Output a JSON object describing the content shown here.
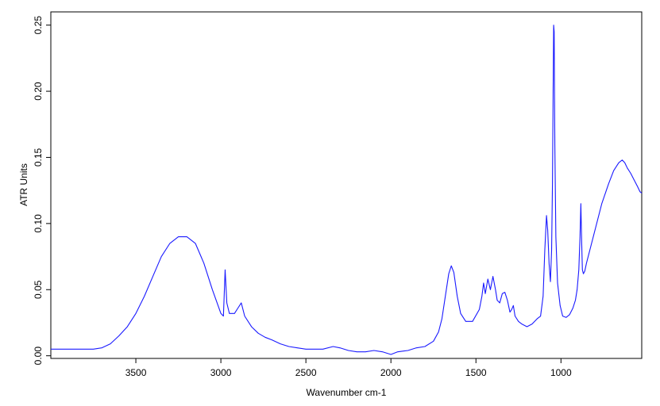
{
  "chart_data": {
    "type": "line",
    "title": "",
    "xlabel": "Wavenumber cm-1",
    "ylabel": "ATR Units",
    "xlim": [
      4000,
      525
    ],
    "x_reversed": true,
    "ylim": [
      -0.002,
      0.26
    ],
    "x_ticks": [
      3500,
      3000,
      2500,
      2000,
      1500,
      1000
    ],
    "x_tick_labels": [
      "3500",
      "3000",
      "2500",
      "2000",
      "1500",
      "1000"
    ],
    "y_ticks": [
      0.0,
      0.05,
      0.1,
      0.15,
      0.2,
      0.25
    ],
    "y_tick_labels": [
      "0.00",
      "0.05",
      "0.10",
      "0.15",
      "0.20",
      "0.25"
    ],
    "grid": false,
    "legend": "none",
    "line_color": "#1a1aff",
    "series": [
      {
        "x": [
          4000,
          3950,
          3900,
          3850,
          3800,
          3750,
          3700,
          3650,
          3600,
          3550,
          3500,
          3450,
          3400,
          3350,
          3300,
          3250,
          3200,
          3150,
          3100,
          3050,
          3000,
          2985,
          2975,
          2965,
          2950,
          2920,
          2900,
          2880,
          2860,
          2820,
          2780,
          2740,
          2700,
          2650,
          2600,
          2550,
          2500,
          2450,
          2400,
          2340,
          2300,
          2250,
          2200,
          2150,
          2100,
          2050,
          2000,
          1960,
          1900,
          1850,
          1800,
          1750,
          1720,
          1700,
          1680,
          1660,
          1645,
          1630,
          1610,
          1590,
          1560,
          1520,
          1480,
          1465,
          1455,
          1445,
          1430,
          1415,
          1400,
          1385,
          1375,
          1360,
          1345,
          1330,
          1315,
          1300,
          1290,
          1280,
          1270,
          1250,
          1230,
          1200,
          1170,
          1140,
          1120,
          1105,
          1095,
          1085,
          1078,
          1070,
          1062,
          1055,
          1050,
          1046,
          1043,
          1040,
          1036,
          1030,
          1020,
          1005,
          990,
          970,
          950,
          930,
          915,
          905,
          895,
          888,
          883,
          878,
          874,
          868,
          860,
          850,
          830,
          800,
          760,
          720,
          690,
          660,
          640,
          625,
          610,
          590,
          570,
          550,
          535,
          525
        ],
        "y": [
          0.005,
          0.005,
          0.005,
          0.005,
          0.005,
          0.005,
          0.006,
          0.009,
          0.015,
          0.022,
          0.032,
          0.045,
          0.06,
          0.075,
          0.085,
          0.09,
          0.09,
          0.085,
          0.07,
          0.05,
          0.032,
          0.03,
          0.065,
          0.04,
          0.032,
          0.032,
          0.036,
          0.04,
          0.03,
          0.022,
          0.017,
          0.014,
          0.012,
          0.009,
          0.007,
          0.006,
          0.005,
          0.005,
          0.005,
          0.007,
          0.006,
          0.004,
          0.003,
          0.003,
          0.004,
          0.003,
          0.001,
          0.003,
          0.004,
          0.006,
          0.007,
          0.011,
          0.018,
          0.028,
          0.045,
          0.062,
          0.068,
          0.063,
          0.045,
          0.032,
          0.026,
          0.026,
          0.035,
          0.045,
          0.055,
          0.047,
          0.058,
          0.05,
          0.06,
          0.05,
          0.042,
          0.04,
          0.047,
          0.048,
          0.042,
          0.033,
          0.035,
          0.038,
          0.03,
          0.026,
          0.024,
          0.022,
          0.024,
          0.028,
          0.03,
          0.045,
          0.08,
          0.106,
          0.095,
          0.07,
          0.056,
          0.08,
          0.13,
          0.2,
          0.25,
          0.245,
          0.16,
          0.09,
          0.055,
          0.038,
          0.03,
          0.029,
          0.031,
          0.036,
          0.042,
          0.05,
          0.065,
          0.09,
          0.115,
          0.085,
          0.065,
          0.062,
          0.064,
          0.07,
          0.08,
          0.095,
          0.115,
          0.13,
          0.14,
          0.146,
          0.148,
          0.146,
          0.142,
          0.138,
          0.133,
          0.128,
          0.124,
          0.123
        ]
      }
    ]
  }
}
